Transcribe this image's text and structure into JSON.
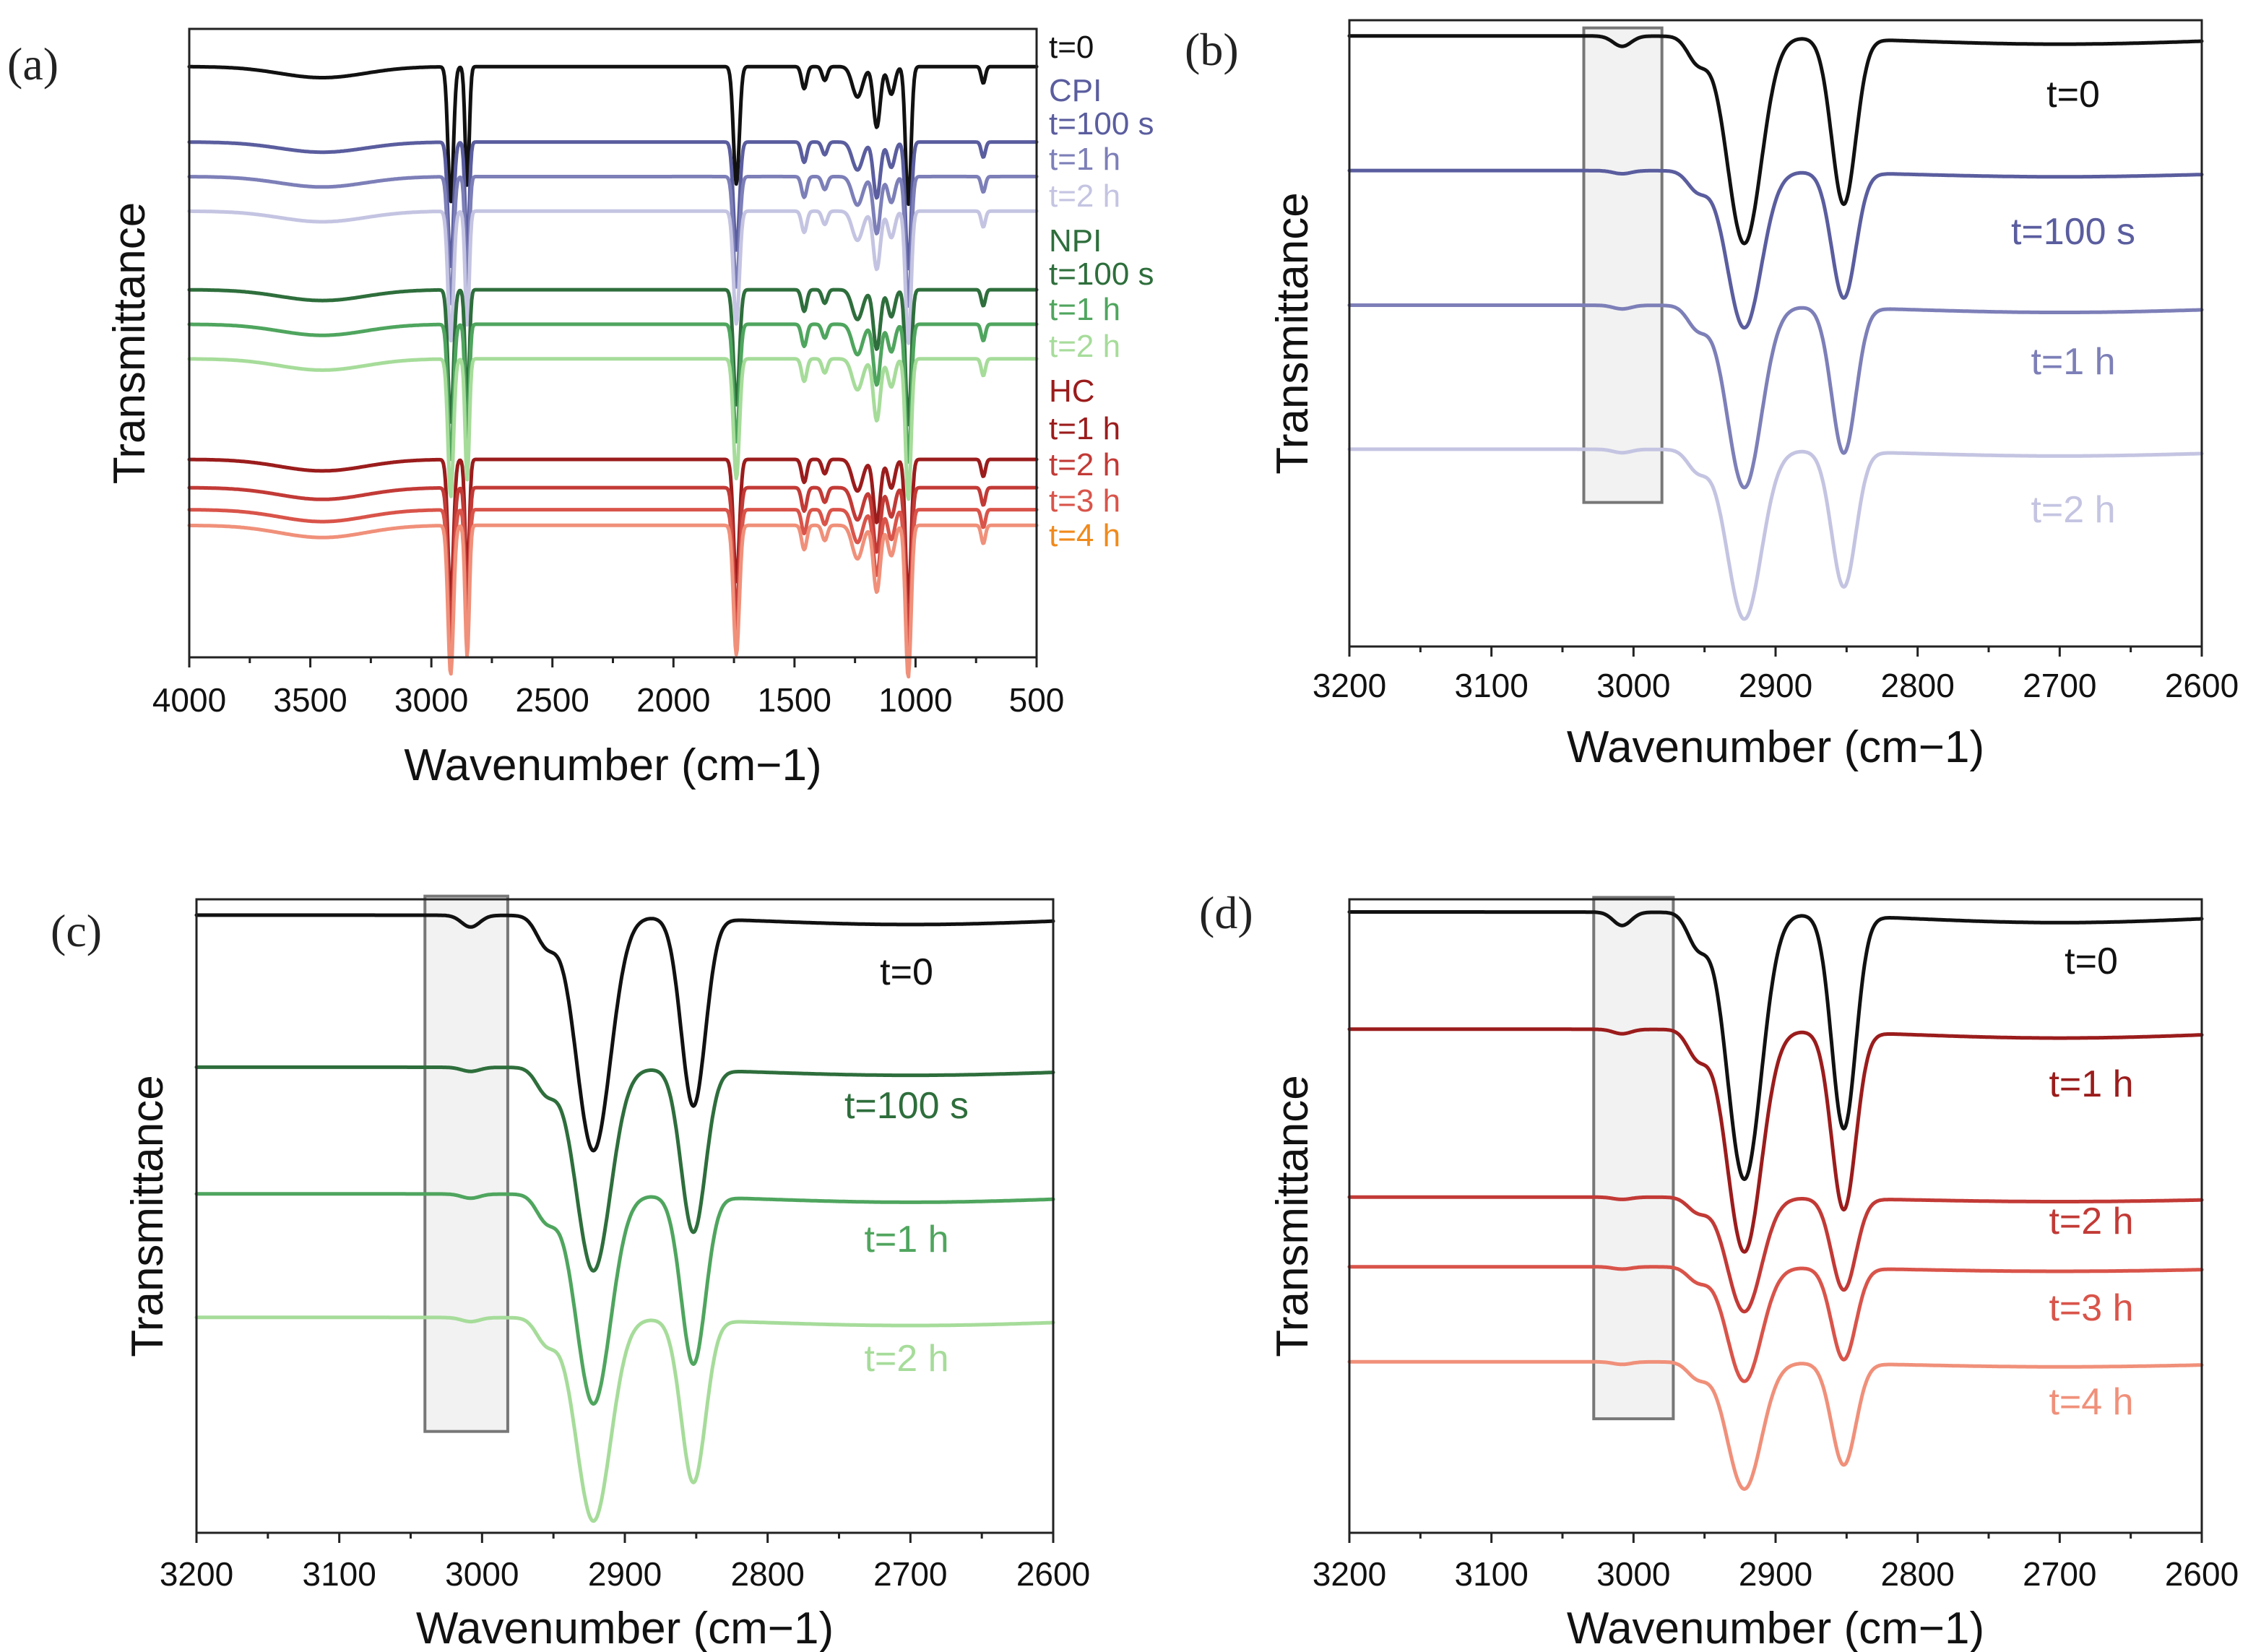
{
  "chart_data": [
    {
      "panel": "(a)",
      "type": "line",
      "xlabel": "Wavenumber (cm−1)",
      "ylabel": "Transmittance",
      "xlim": [
        4000,
        500
      ],
      "x_reversed": true,
      "xticks": [
        4000,
        3500,
        3000,
        2500,
        2000,
        1500,
        1000,
        500
      ],
      "grid": false,
      "legend": "right-side inline labels",
      "series": [
        {
          "name": "t=0",
          "color": "#111111",
          "offset": 0.94,
          "depth": 1.0
        },
        {
          "name": "t=100 s",
          "group": "CPI",
          "color": "#5a5d9e",
          "offset": 0.82,
          "depth": 1.0
        },
        {
          "name": "t=1 h",
          "group": "CPI",
          "color": "#7d7fb8",
          "offset": 0.765,
          "depth": 1.0
        },
        {
          "name": "t=2 h",
          "group": "CPI",
          "color": "#c4c4e2",
          "offset": 0.71,
          "depth": 1.0
        },
        {
          "name": "t=100 s",
          "group": "NPI",
          "color": "#2e6e3c",
          "offset": 0.585,
          "depth": 1.0
        },
        {
          "name": "t=1 h",
          "group": "NPI",
          "color": "#4fa55e",
          "offset": 0.53,
          "depth": 1.0
        },
        {
          "name": "t=2 h",
          "group": "NPI",
          "color": "#a6dc9a",
          "offset": 0.475,
          "depth": 1.0
        },
        {
          "name": "t=1 h",
          "group": "HC",
          "color": "#9b1c1c",
          "offset": 0.345,
          "depth": 1.0
        },
        {
          "name": "t=2 h",
          "group": "HC",
          "color": "#c23a36",
          "offset": 0.3,
          "depth": 1.0
        },
        {
          "name": "t=3 h",
          "group": "HC",
          "color": "#d9544a",
          "offset": 0.265,
          "depth": 1.0
        },
        {
          "name": "t=4 h",
          "group": "HC",
          "color": "#f0907a",
          "offset": 0.24,
          "depth": 1.0
        }
      ],
      "group_labels": [
        {
          "text": "CPI",
          "color": "#5a5d9e"
        },
        {
          "text": "NPI",
          "color": "#2e6e3c"
        },
        {
          "text": "HC",
          "color": "#9b1c1c"
        }
      ],
      "right_labels": [
        {
          "text": "t=0",
          "color": "#111111"
        },
        {
          "text": "CPI",
          "color": "#5a5d9e"
        },
        {
          "text": "t=100 s",
          "color": "#5a5d9e"
        },
        {
          "text": "t=1 h",
          "color": "#7d7fb8"
        },
        {
          "text": "t=2 h",
          "color": "#c4c4e2"
        },
        {
          "text": "NPI",
          "color": "#2e6e3c"
        },
        {
          "text": "t=100 s",
          "color": "#2e6e3c"
        },
        {
          "text": "t=1 h",
          "color": "#4fa55e"
        },
        {
          "text": "t=2 h",
          "color": "#a6dc9a"
        },
        {
          "text": "HC",
          "color": "#9b1c1c"
        },
        {
          "text": "t=1 h",
          "color": "#9b1c1c"
        },
        {
          "text": "t=2 h",
          "color": "#c23a36"
        },
        {
          "text": "t=3 h",
          "color": "#d9544a"
        },
        {
          "text": "t=4 h",
          "color": "#f08a1c"
        }
      ],
      "peaks_cm-1": [
        2920,
        2852,
        1740,
        1460,
        1160,
        1030,
        720
      ]
    },
    {
      "panel": "(b)",
      "type": "line",
      "xlabel": "Wavenumber (cm−1)",
      "ylabel": "Transmittance",
      "xlim": [
        3200,
        2600
      ],
      "x_reversed": true,
      "xticks": [
        3200,
        3100,
        3000,
        2900,
        2800,
        2700,
        2600
      ],
      "grid": false,
      "highlight_region_cm-1": [
        3035,
        2980
      ],
      "series": [
        {
          "name": "t=0",
          "color": "#111111",
          "offset": 0.975,
          "depth": 0.33,
          "shoulder_3010": true
        },
        {
          "name": "t=100 s",
          "color": "#5a5d9e",
          "offset": 0.76,
          "depth": 0.25,
          "shoulder_3010": false
        },
        {
          "name": "t=1 h",
          "color": "#7d7fb8",
          "offset": 0.545,
          "depth": 0.29,
          "shoulder_3010": false
        },
        {
          "name": "t=2 h",
          "color": "#c4c4e2",
          "offset": 0.315,
          "depth": 0.27,
          "shoulder_3010": false
        }
      ],
      "series_labels": [
        {
          "text": "t=0",
          "color": "#111111"
        },
        {
          "text": "t=100 s",
          "color": "#5a5d9e"
        },
        {
          "text": "t=1 h",
          "color": "#7d7fb8"
        },
        {
          "text": "t=2 h",
          "color": "#c4c4e2"
        }
      ]
    },
    {
      "panel": "(c)",
      "type": "line",
      "xlabel": "Wavenumber (cm−1)",
      "ylabel": "Transmittance",
      "xlim": [
        3200,
        2600
      ],
      "x_reversed": true,
      "xticks": [
        3200,
        3100,
        3000,
        2900,
        2800,
        2700,
        2600
      ],
      "grid": false,
      "highlight_region_cm-1": [
        3040,
        2982
      ],
      "series": [
        {
          "name": "t=0",
          "color": "#111111",
          "offset": 0.975,
          "depth": 0.37,
          "shoulder_3010": true
        },
        {
          "name": "t=100 s",
          "color": "#2e6e3c",
          "offset": 0.735,
          "depth": 0.32,
          "shoulder_3010": false
        },
        {
          "name": "t=1 h",
          "color": "#4fa55e",
          "offset": 0.535,
          "depth": 0.33,
          "shoulder_3010": false
        },
        {
          "name": "t=2 h",
          "color": "#a6dc9a",
          "offset": 0.34,
          "depth": 0.32,
          "shoulder_3010": false
        }
      ],
      "series_labels": [
        {
          "text": "t=0",
          "color": "#111111"
        },
        {
          "text": "t=100 s",
          "color": "#2e6e3c"
        },
        {
          "text": "t=1 h",
          "color": "#4fa55e"
        },
        {
          "text": "t=2 h",
          "color": "#a6dc9a"
        }
      ]
    },
    {
      "panel": "(d)",
      "type": "line",
      "xlabel": "Wavenumber (cm−1)",
      "ylabel": "Transmittance",
      "xlim": [
        3200,
        2600
      ],
      "x_reversed": true,
      "xticks": [
        3200,
        3100,
        3000,
        2900,
        2800,
        2700,
        2600
      ],
      "grid": false,
      "highlight_region_cm-1": [
        3028,
        2972
      ],
      "series": [
        {
          "name": "t=0",
          "color": "#111111",
          "offset": 0.98,
          "depth": 0.42,
          "shoulder_3010": true
        },
        {
          "name": "t=1 h",
          "color": "#9b1c1c",
          "offset": 0.795,
          "depth": 0.35,
          "shoulder_3010": false
        },
        {
          "name": "t=2 h",
          "color": "#c23a36",
          "offset": 0.53,
          "depth": 0.18,
          "shoulder_3010": false
        },
        {
          "name": "t=3 h",
          "color": "#d9544a",
          "offset": 0.42,
          "depth": 0.18,
          "shoulder_3010": false
        },
        {
          "name": "t=4 h",
          "color": "#f0907a",
          "offset": 0.27,
          "depth": 0.2,
          "shoulder_3010": false
        }
      ],
      "series_labels": [
        {
          "text": "t=0",
          "color": "#111111"
        },
        {
          "text": "t=1 h",
          "color": "#9b1c1c"
        },
        {
          "text": "t=2 h",
          "color": "#c23a36"
        },
        {
          "text": "t=3 h",
          "color": "#d9544a"
        },
        {
          "text": "t=4 h",
          "color": "#f0907a"
        }
      ]
    }
  ]
}
